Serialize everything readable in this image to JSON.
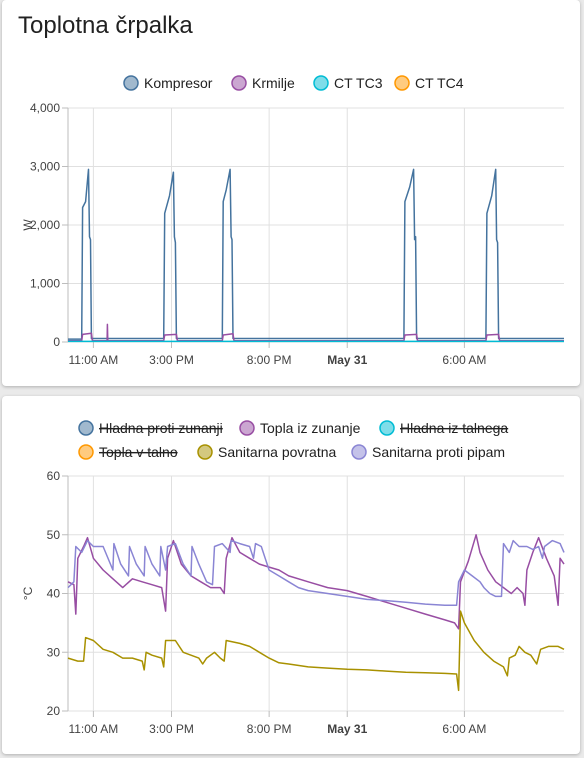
{
  "card1": {
    "title": "Toplotna črpalka",
    "chart_data": {
      "type": "line",
      "unit": "W",
      "ylim": [
        0,
        4000
      ],
      "y_ticks": [
        "4,000",
        "3,000",
        "2,000",
        "1,000",
        "0"
      ],
      "x_ticks": [
        {
          "label": "11:00 AM",
          "hours": 0,
          "bold": false
        },
        {
          "label": "3:00 PM",
          "hours": 4,
          "bold": false
        },
        {
          "label": "8:00 PM",
          "hours": 9,
          "bold": false
        },
        {
          "label": "May 31",
          "hours": 13,
          "bold": true
        },
        {
          "label": "6:00 AM",
          "hours": 19,
          "bold": false
        }
      ],
      "x_range_hours": [
        -1.3,
        24.1
      ],
      "grid": true,
      "legend_position": "top",
      "series": [
        {
          "name": "Kompresor",
          "color": "#44739e",
          "hidden": false,
          "points": [
            [
              -1.3,
              50
            ],
            [
              -0.6,
              50
            ],
            [
              -0.55,
              2300
            ],
            [
              -0.4,
              2400
            ],
            [
              -0.25,
              2950
            ],
            [
              -0.2,
              1800
            ],
            [
              -0.15,
              1750
            ],
            [
              -0.1,
              60
            ],
            [
              3.6,
              60
            ],
            [
              3.65,
              2200
            ],
            [
              3.9,
              2500
            ],
            [
              4.1,
              2900
            ],
            [
              4.15,
              1800
            ],
            [
              4.2,
              1700
            ],
            [
              4.25,
              60
            ],
            [
              6.6,
              60
            ],
            [
              6.65,
              2400
            ],
            [
              6.8,
              2600
            ],
            [
              7.0,
              2950
            ],
            [
              7.05,
              1800
            ],
            [
              7.1,
              1750
            ],
            [
              7.15,
              60
            ],
            [
              15.9,
              60
            ],
            [
              15.95,
              2400
            ],
            [
              16.2,
              2650
            ],
            [
              16.4,
              2950
            ],
            [
              16.45,
              1750
            ],
            [
              16.5,
              1800
            ],
            [
              16.55,
              60
            ],
            [
              20.1,
              60
            ],
            [
              20.15,
              2200
            ],
            [
              20.4,
              2500
            ],
            [
              20.6,
              2950
            ],
            [
              20.65,
              1750
            ],
            [
              20.7,
              1700
            ],
            [
              20.75,
              60
            ],
            [
              24.1,
              60
            ]
          ]
        },
        {
          "name": "Krmilje",
          "color": "#984ea3",
          "hidden": false,
          "points": [
            [
              -1.3,
              20
            ],
            [
              -0.6,
              20
            ],
            [
              -0.55,
              130
            ],
            [
              -0.1,
              150
            ],
            [
              -0.05,
              20
            ],
            [
              0.7,
              20
            ],
            [
              0.72,
              300
            ],
            [
              0.74,
              20
            ],
            [
              3.6,
              20
            ],
            [
              3.65,
              120
            ],
            [
              4.25,
              130
            ],
            [
              4.3,
              20
            ],
            [
              6.6,
              20
            ],
            [
              6.65,
              120
            ],
            [
              7.15,
              140
            ],
            [
              7.2,
              20
            ],
            [
              15.9,
              20
            ],
            [
              15.95,
              120
            ],
            [
              16.55,
              130
            ],
            [
              16.6,
              20
            ],
            [
              20.1,
              20
            ],
            [
              20.15,
              120
            ],
            [
              20.75,
              130
            ],
            [
              20.8,
              20
            ],
            [
              24.1,
              20
            ]
          ]
        },
        {
          "name": "CT TC3",
          "color": "#00bcd4",
          "hidden": false,
          "points": [
            [
              -1.3,
              10
            ],
            [
              24.1,
              10
            ]
          ]
        },
        {
          "name": "CT TC4",
          "color": "#ff9800",
          "hidden": false,
          "points": []
        }
      ]
    }
  },
  "card2": {
    "chart_data": {
      "type": "line",
      "unit": "°C",
      "ylim": [
        20,
        60
      ],
      "y_ticks": [
        "60",
        "50",
        "40",
        "30",
        "20"
      ],
      "x_ticks": [
        {
          "label": "11:00 AM",
          "hours": 0,
          "bold": false
        },
        {
          "label": "3:00 PM",
          "hours": 4,
          "bold": false
        },
        {
          "label": "8:00 PM",
          "hours": 9,
          "bold": false
        },
        {
          "label": "May 31",
          "hours": 13,
          "bold": true
        },
        {
          "label": "6:00 AM",
          "hours": 19,
          "bold": false
        }
      ],
      "x_range_hours": [
        -1.3,
        24.1
      ],
      "grid": true,
      "legend_position": "top",
      "series": [
        {
          "name": "Hladna proti zunanji",
          "color": "#44739e",
          "hidden": true,
          "points": []
        },
        {
          "name": "Topla iz zunanje",
          "color": "#984ea3",
          "hidden": false,
          "points": [
            [
              -1.3,
              42
            ],
            [
              -1.0,
              41.5
            ],
            [
              -0.9,
              36.5
            ],
            [
              -0.8,
              46
            ],
            [
              -0.5,
              48
            ],
            [
              -0.3,
              49.5
            ],
            [
              0,
              46
            ],
            [
              0.5,
              44
            ],
            [
              1,
              42.5
            ],
            [
              1.5,
              41
            ],
            [
              2,
              42.5
            ],
            [
              2.5,
              42
            ],
            [
              3,
              41.5
            ],
            [
              3.5,
              41
            ],
            [
              3.7,
              37
            ],
            [
              3.8,
              46
            ],
            [
              4.1,
              49
            ],
            [
              4.5,
              45
            ],
            [
              5,
              43
            ],
            [
              5.5,
              42
            ],
            [
              6,
              41
            ],
            [
              6.5,
              41
            ],
            [
              6.7,
              40
            ],
            [
              6.8,
              46
            ],
            [
              7.1,
              49.5
            ],
            [
              7.5,
              47
            ],
            [
              8,
              46
            ],
            [
              8.5,
              45
            ],
            [
              9,
              44.5
            ],
            [
              9.5,
              44
            ],
            [
              10,
              43
            ],
            [
              11,
              42
            ],
            [
              12,
              41
            ],
            [
              13,
              40.5
            ],
            [
              14,
              39.5
            ],
            [
              15,
              38.5
            ],
            [
              16,
              37.5
            ],
            [
              17,
              36.5
            ],
            [
              18,
              35.5
            ],
            [
              18.5,
              35
            ],
            [
              18.7,
              34
            ],
            [
              18.8,
              42
            ],
            [
              19.2,
              45.5
            ],
            [
              19.6,
              50
            ],
            [
              19.8,
              47
            ],
            [
              20.2,
              44
            ],
            [
              20.6,
              42
            ],
            [
              21,
              41
            ],
            [
              21.4,
              40
            ],
            [
              21.7,
              41
            ],
            [
              22.0,
              40
            ],
            [
              22.1,
              38
            ],
            [
              22.2,
              44
            ],
            [
              22.5,
              47
            ],
            [
              22.8,
              49.5
            ],
            [
              23.2,
              46
            ],
            [
              23.6,
              43
            ],
            [
              23.8,
              38
            ],
            [
              23.9,
              46
            ],
            [
              24.1,
              45
            ]
          ]
        },
        {
          "name": "Hladna iz talnega",
          "color": "#00bcd4",
          "hidden": true,
          "points": []
        },
        {
          "name": "Topla v talno",
          "color": "#ff9800",
          "hidden": true,
          "points": []
        },
        {
          "name": "Sanitarna povratna",
          "color": "#a89100",
          "hidden": false,
          "points": [
            [
              -1.3,
              29
            ],
            [
              -0.8,
              28.5
            ],
            [
              -0.5,
              28.5
            ],
            [
              -0.4,
              32.5
            ],
            [
              0,
              32
            ],
            [
              0.5,
              30.5
            ],
            [
              1,
              30
            ],
            [
              1.5,
              29
            ],
            [
              2,
              29
            ],
            [
              2.5,
              28.5
            ],
            [
              2.6,
              27
            ],
            [
              2.7,
              30
            ],
            [
              3,
              29.5
            ],
            [
              3.5,
              29
            ],
            [
              3.6,
              27.5
            ],
            [
              3.7,
              32
            ],
            [
              4.2,
              32
            ],
            [
              4.6,
              30
            ],
            [
              5,
              29.5
            ],
            [
              5.4,
              29
            ],
            [
              5.6,
              28
            ],
            [
              5.8,
              29
            ],
            [
              6.2,
              30
            ],
            [
              6.5,
              29
            ],
            [
              6.7,
              28.5
            ],
            [
              6.8,
              32
            ],
            [
              7.5,
              31.5
            ],
            [
              8,
              31
            ],
            [
              8.5,
              30
            ],
            [
              9,
              29
            ],
            [
              9.5,
              28.2
            ],
            [
              10,
              28
            ],
            [
              11,
              27.5
            ],
            [
              12,
              27.3
            ],
            [
              13,
              27.1
            ],
            [
              14,
              27
            ],
            [
              15,
              26.8
            ],
            [
              16,
              26.6
            ],
            [
              17,
              26.5
            ],
            [
              18,
              26.4
            ],
            [
              18.6,
              26.3
            ],
            [
              18.7,
              23.5
            ],
            [
              18.8,
              37
            ],
            [
              19,
              35
            ],
            [
              19.5,
              32
            ],
            [
              20,
              30
            ],
            [
              20.5,
              28.5
            ],
            [
              21,
              27.5
            ],
            [
              21.2,
              26
            ],
            [
              21.3,
              29
            ],
            [
              21.6,
              29.5
            ],
            [
              21.8,
              31
            ],
            [
              22.1,
              30
            ],
            [
              22.4,
              29.5
            ],
            [
              22.7,
              28
            ],
            [
              22.9,
              30.5
            ],
            [
              23.3,
              31
            ],
            [
              23.8,
              31
            ],
            [
              24.1,
              30.5
            ]
          ]
        },
        {
          "name": "Sanitarna proti pipam",
          "color": "#8a85d4",
          "hidden": false,
          "points": [
            [
              -1.3,
              41
            ],
            [
              -1.0,
              42
            ],
            [
              -0.9,
              48
            ],
            [
              -0.6,
              47
            ],
            [
              -0.3,
              49
            ],
            [
              0,
              48
            ],
            [
              0.5,
              48
            ],
            [
              1.0,
              44
            ],
            [
              1.05,
              48.5
            ],
            [
              1.4,
              45
            ],
            [
              1.8,
              43
            ],
            [
              1.85,
              48
            ],
            [
              2.2,
              45
            ],
            [
              2.6,
              43
            ],
            [
              2.65,
              48
            ],
            [
              3.0,
              45
            ],
            [
              3.4,
              43
            ],
            [
              3.45,
              48
            ],
            [
              3.7,
              44
            ],
            [
              3.8,
              48
            ],
            [
              4.2,
              48.5
            ],
            [
              4.6,
              45
            ],
            [
              5.0,
              43
            ],
            [
              5.05,
              48
            ],
            [
              5.4,
              45
            ],
            [
              5.8,
              42
            ],
            [
              6.1,
              41.5
            ],
            [
              6.2,
              48
            ],
            [
              6.6,
              48.5
            ],
            [
              7.0,
              47
            ],
            [
              7.05,
              49
            ],
            [
              7.5,
              48.5
            ],
            [
              8,
              48
            ],
            [
              8.2,
              46
            ],
            [
              8.3,
              48.5
            ],
            [
              8.6,
              48
            ],
            [
              8.8,
              46
            ],
            [
              9.0,
              44
            ],
            [
              9.5,
              43
            ],
            [
              10,
              42
            ],
            [
              10.5,
              41
            ],
            [
              11,
              40.5
            ],
            [
              12,
              40
            ],
            [
              13,
              39.5
            ],
            [
              14,
              39
            ],
            [
              15,
              38.8
            ],
            [
              16,
              38.5
            ],
            [
              17,
              38.2
            ],
            [
              18,
              38
            ],
            [
              18.6,
              38
            ],
            [
              18.7,
              42
            ],
            [
              19,
              44
            ],
            [
              19.4,
              43
            ],
            [
              19.8,
              42
            ],
            [
              20.0,
              41
            ],
            [
              20.3,
              40
            ],
            [
              20.6,
              39.5
            ],
            [
              20.9,
              39.5
            ],
            [
              21.0,
              48.5
            ],
            [
              21.3,
              47
            ],
            [
              21.5,
              49
            ],
            [
              21.8,
              48
            ],
            [
              22.2,
              48
            ],
            [
              22.5,
              47.5
            ],
            [
              22.8,
              48
            ],
            [
              23,
              46
            ],
            [
              23.1,
              48
            ],
            [
              23.5,
              49
            ],
            [
              23.9,
              48.5
            ],
            [
              24.1,
              47
            ]
          ]
        }
      ]
    }
  }
}
